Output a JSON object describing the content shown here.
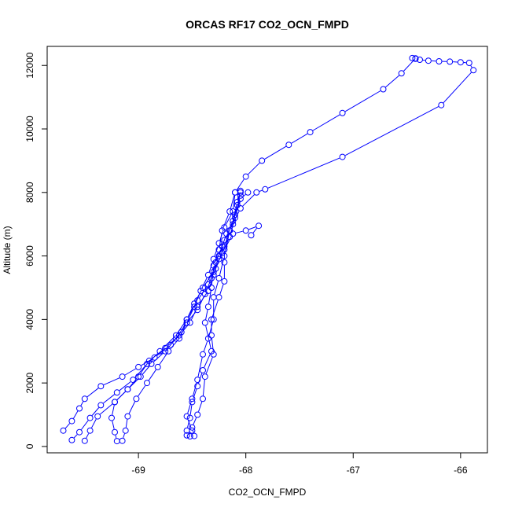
{
  "chart_data": {
    "type": "scatter",
    "title": "ORCAS RF17 CO2_OCN_FMPD",
    "xlabel": "CO2_OCN_FMPD",
    "ylabel": "Altitude (m)",
    "xlim": [
      -69.85,
      -65.75
    ],
    "ylim": [
      -200,
      12600
    ],
    "x_ticks": [
      -69,
      -68,
      -67,
      -66
    ],
    "x_tick_labels": [
      "-69",
      "-68",
      "-67",
      "-66"
    ],
    "y_ticks": [
      0,
      2000,
      4000,
      6000,
      8000,
      10000,
      12000
    ],
    "y_tick_labels": [
      "0",
      "2000",
      "4000",
      "6000",
      "8000",
      "10000",
      "12000"
    ],
    "grid": false,
    "color": "#0000ff",
    "series": [
      {
        "points": [
          [
            -68.55,
            350
          ],
          [
            -68.5,
            500
          ],
          [
            -68.55,
            950
          ],
          [
            -68.5,
            1500
          ],
          [
            -68.45,
            2100
          ],
          [
            -68.4,
            2900
          ],
          [
            -68.35,
            3400
          ],
          [
            -68.3,
            4000
          ],
          [
            -68.3,
            4700
          ],
          [
            -68.25,
            5300
          ],
          [
            -68.2,
            6000
          ],
          [
            -68.15,
            6800
          ],
          [
            -68.05,
            7500
          ],
          [
            -67.9,
            8000
          ],
          [
            -67.82,
            8100
          ],
          [
            -67.1,
            9120
          ],
          [
            -66.18,
            10750
          ],
          [
            -65.88,
            11850
          ],
          [
            -65.92,
            12080
          ],
          [
            -66.0,
            12100
          ],
          [
            -66.1,
            12120
          ],
          [
            -66.2,
            12130
          ],
          [
            -66.3,
            12150
          ],
          [
            -66.38,
            12180
          ],
          [
            -66.42,
            12210
          ],
          [
            -66.45,
            12230
          ]
        ]
      },
      {
        "points": [
          [
            -66.42,
            12220
          ],
          [
            -66.55,
            11750
          ],
          [
            -66.72,
            11250
          ],
          [
            -67.1,
            10500
          ],
          [
            -67.4,
            9900
          ],
          [
            -67.6,
            9500
          ],
          [
            -67.85,
            9000
          ],
          [
            -68.0,
            8500
          ],
          [
            -68.1,
            8000
          ],
          [
            -68.15,
            7400
          ],
          [
            -68.22,
            6800
          ],
          [
            -68.25,
            6200
          ],
          [
            -68.3,
            5700
          ],
          [
            -68.32,
            5000
          ],
          [
            -68.35,
            4400
          ],
          [
            -68.38,
            3900
          ],
          [
            -68.32,
            3000
          ],
          [
            -68.4,
            2400
          ],
          [
            -68.45,
            1900
          ],
          [
            -68.5,
            1400
          ],
          [
            -68.52,
            900
          ],
          [
            -68.55,
            500
          ],
          [
            -68.52,
            320
          ]
        ]
      },
      {
        "points": [
          [
            -68.48,
            330
          ],
          [
            -68.5,
            600
          ],
          [
            -68.45,
            1000
          ],
          [
            -68.4,
            1500
          ],
          [
            -68.38,
            2200
          ],
          [
            -68.3,
            2900
          ],
          [
            -68.32,
            3500
          ],
          [
            -68.32,
            4000
          ],
          [
            -68.25,
            4700
          ],
          [
            -68.2,
            5200
          ],
          [
            -68.2,
            5800
          ],
          [
            -68.2,
            6200
          ],
          [
            -68.12,
            6700
          ],
          [
            -68.0,
            6800
          ],
          [
            -67.88,
            6950
          ],
          [
            -67.95,
            6650
          ]
        ]
      },
      {
        "points": [
          [
            -69.7,
            500
          ],
          [
            -69.62,
            800
          ],
          [
            -69.55,
            1200
          ],
          [
            -69.5,
            1500
          ],
          [
            -69.35,
            1900
          ],
          [
            -69.15,
            2200
          ],
          [
            -69.0,
            2500
          ],
          [
            -68.85,
            2800
          ],
          [
            -68.7,
            3200
          ],
          [
            -68.6,
            3600
          ],
          [
            -68.55,
            4000
          ],
          [
            -68.45,
            4600
          ],
          [
            -68.35,
            5100
          ],
          [
            -68.28,
            5600
          ],
          [
            -68.22,
            6100
          ],
          [
            -68.15,
            6600
          ],
          [
            -68.1,
            7200
          ],
          [
            -68.05,
            7800
          ],
          [
            -67.98,
            8000
          ]
        ]
      },
      {
        "points": [
          [
            -69.62,
            200
          ],
          [
            -69.55,
            450
          ],
          [
            -69.45,
            900
          ],
          [
            -69.35,
            1300
          ],
          [
            -69.2,
            1700
          ],
          [
            -69.05,
            2100
          ],
          [
            -68.92,
            2600
          ],
          [
            -68.8,
            3000
          ],
          [
            -68.65,
            3500
          ],
          [
            -68.55,
            4000
          ],
          [
            -68.48,
            4500
          ],
          [
            -68.4,
            5000
          ],
          [
            -68.3,
            5500
          ],
          [
            -68.25,
            6000
          ],
          [
            -68.2,
            6500
          ],
          [
            -68.12,
            7000
          ],
          [
            -68.08,
            7600
          ],
          [
            -68.05,
            8000
          ]
        ]
      },
      {
        "points": [
          [
            -69.5,
            180
          ],
          [
            -69.45,
            500
          ],
          [
            -69.38,
            950
          ],
          [
            -69.22,
            1400
          ],
          [
            -69.1,
            1800
          ],
          [
            -69.0,
            2200
          ],
          [
            -68.9,
            2700
          ],
          [
            -68.75,
            3100
          ],
          [
            -68.62,
            3500
          ],
          [
            -68.52,
            3900
          ],
          [
            -68.45,
            4400
          ],
          [
            -68.35,
            4900
          ],
          [
            -68.3,
            5400
          ],
          [
            -68.25,
            5900
          ],
          [
            -68.2,
            6300
          ],
          [
            -68.15,
            6800
          ],
          [
            -68.1,
            7300
          ],
          [
            -68.05,
            7900
          ]
        ]
      },
      {
        "points": [
          [
            -69.2,
            170
          ],
          [
            -69.22,
            450
          ],
          [
            -69.25,
            900
          ],
          [
            -69.22,
            1400
          ],
          [
            -69.1,
            1800
          ],
          [
            -68.98,
            2200
          ],
          [
            -68.88,
            2600
          ],
          [
            -68.75,
            3000
          ],
          [
            -68.65,
            3400
          ],
          [
            -68.55,
            3900
          ],
          [
            -68.45,
            4300
          ],
          [
            -68.38,
            4800
          ],
          [
            -68.32,
            5300
          ],
          [
            -68.28,
            5800
          ],
          [
            -68.22,
            6300
          ],
          [
            -68.18,
            6700
          ],
          [
            -68.12,
            7100
          ],
          [
            -68.08,
            7700
          ],
          [
            -68.05,
            8050
          ]
        ]
      },
      {
        "points": [
          [
            -69.15,
            180
          ],
          [
            -69.12,
            500
          ],
          [
            -69.1,
            950
          ],
          [
            -69.02,
            1500
          ],
          [
            -68.92,
            2000
          ],
          [
            -68.82,
            2500
          ],
          [
            -68.72,
            3000
          ],
          [
            -68.62,
            3400
          ],
          [
            -68.55,
            3900
          ],
          [
            -68.48,
            4400
          ],
          [
            -68.42,
            4900
          ],
          [
            -68.35,
            5400
          ],
          [
            -68.3,
            5900
          ],
          [
            -68.25,
            6400
          ],
          [
            -68.2,
            6900
          ],
          [
            -68.12,
            7400
          ],
          [
            -68.1,
            8000
          ]
        ]
      }
    ]
  }
}
